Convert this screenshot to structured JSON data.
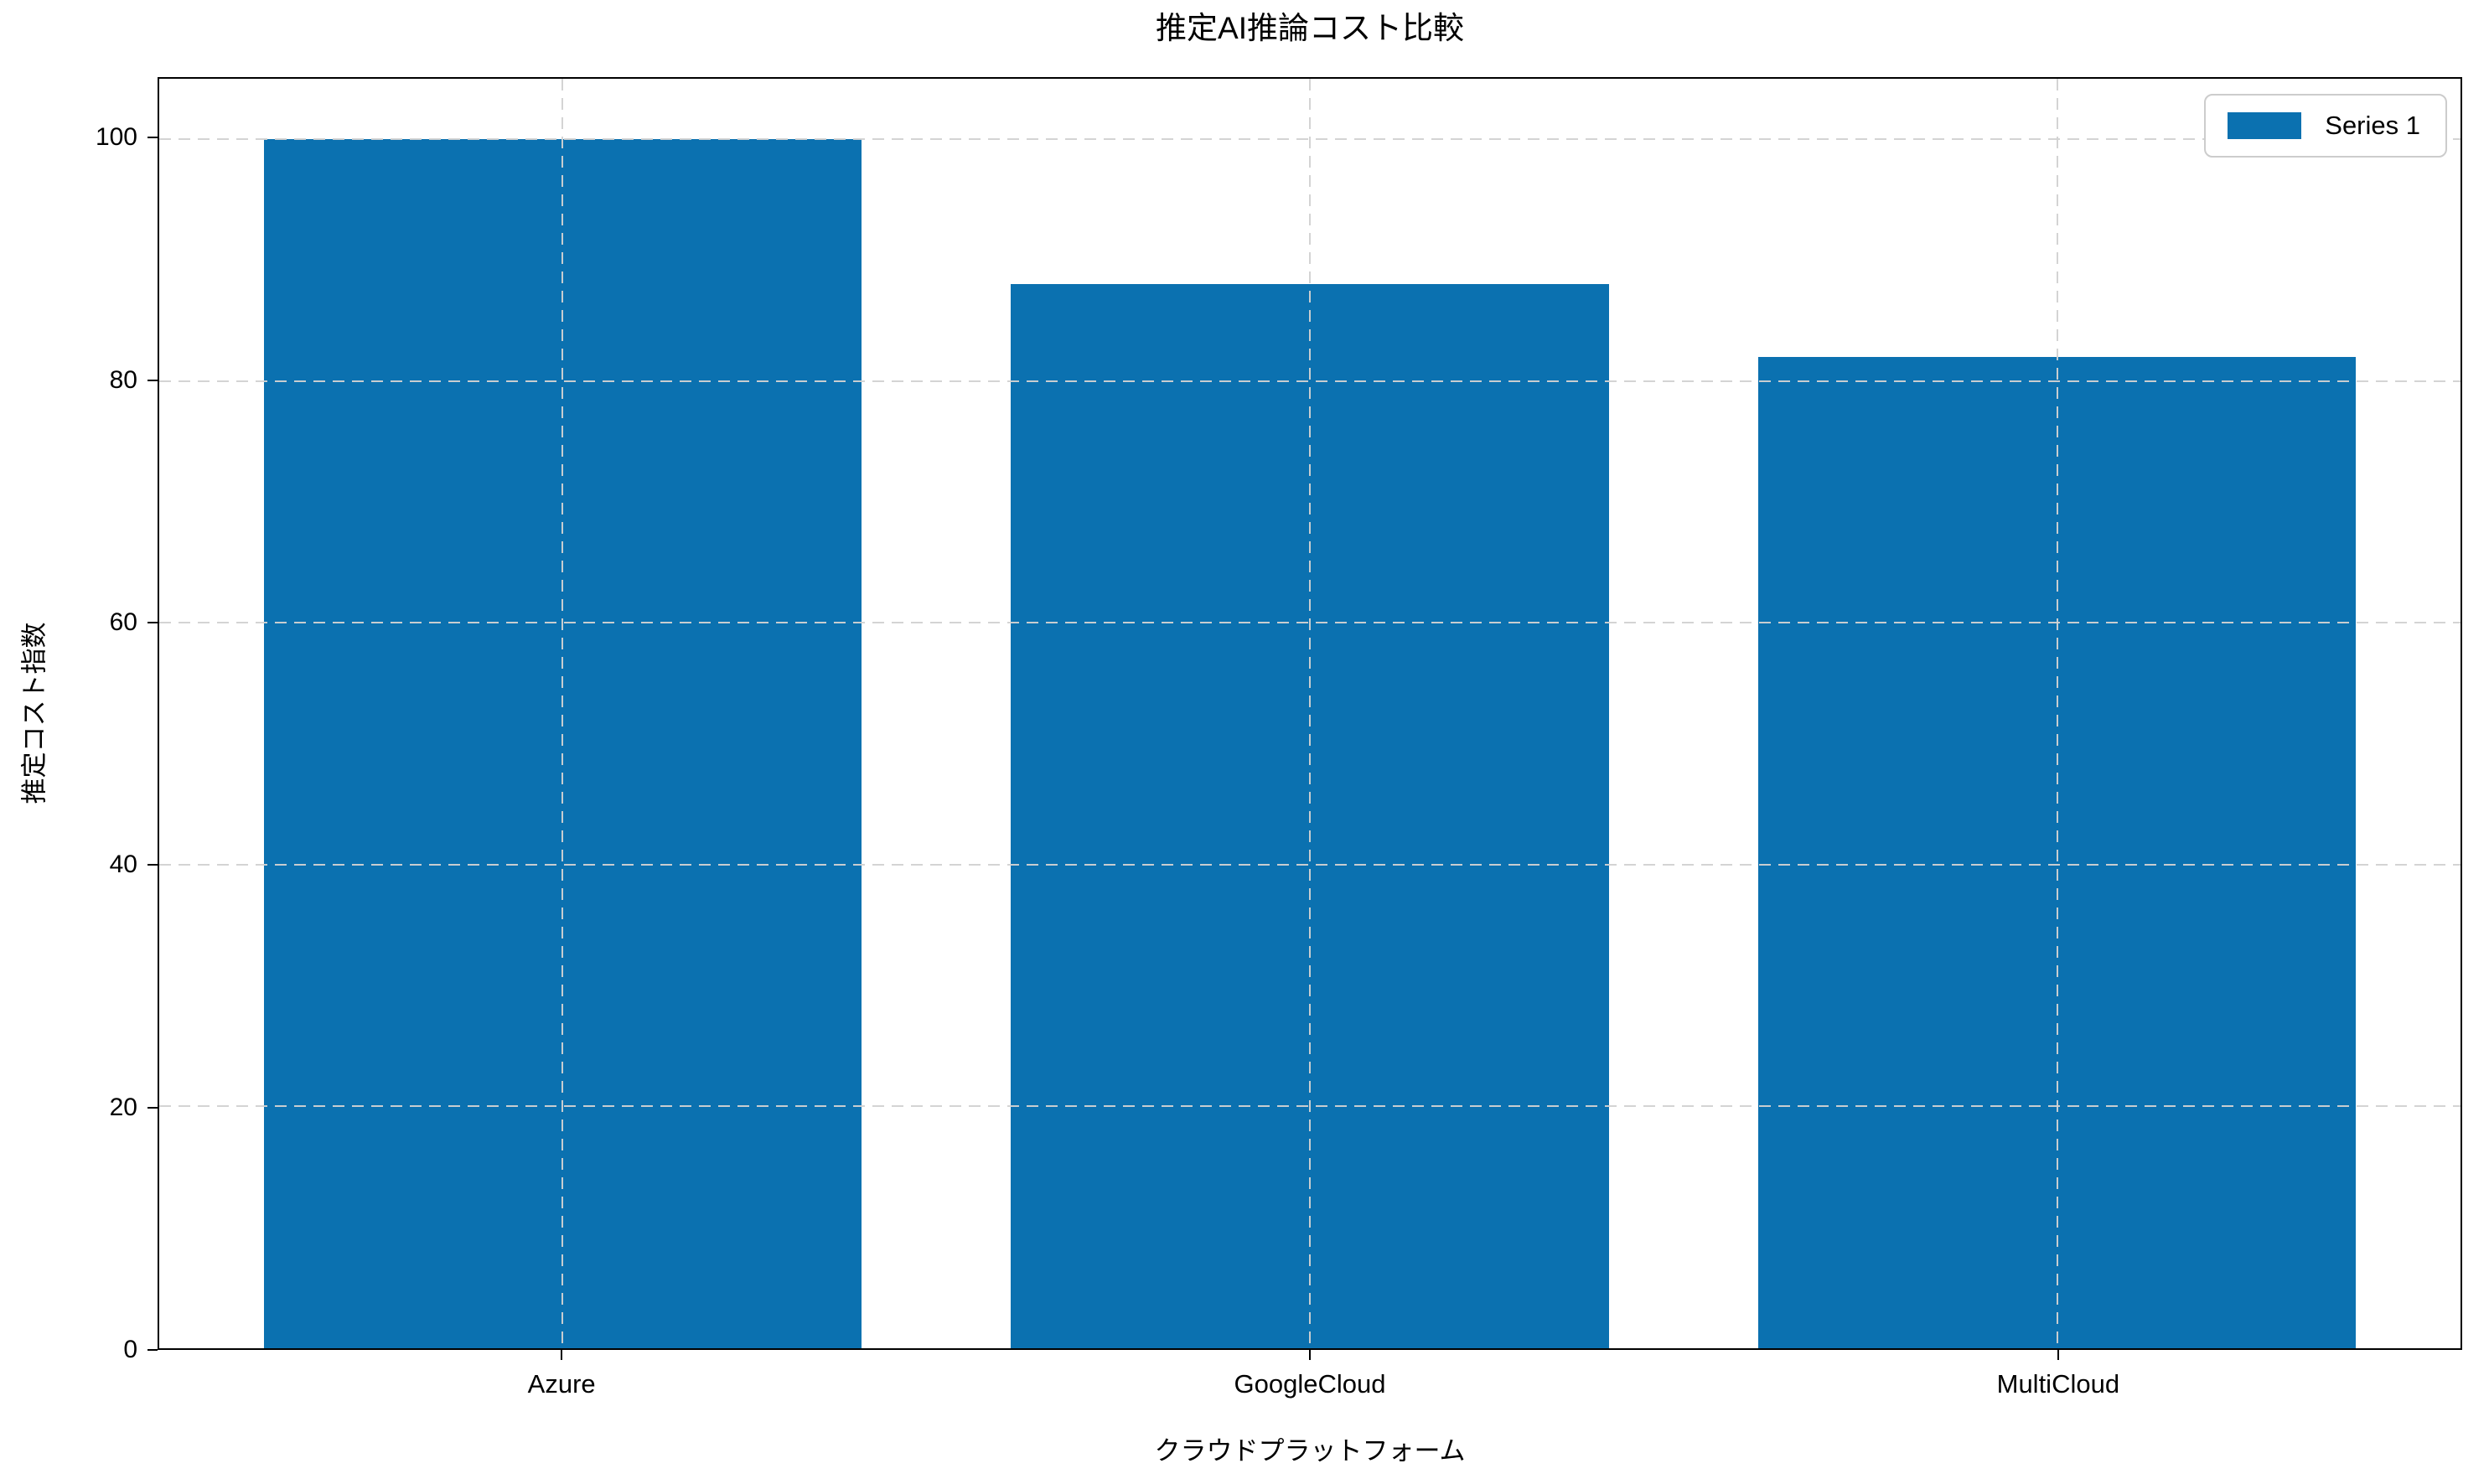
{
  "chart_data": {
    "type": "bar",
    "title": "推定AI推論コスト比較",
    "xlabel": "クラウドプラットフォーム",
    "ylabel": "推定コスト指数",
    "categories": [
      "Azure",
      "GoogleCloud",
      "MultiCloud"
    ],
    "series": [
      {
        "name": "Series 1",
        "color": "#0b71b0",
        "values": [
          100,
          88,
          82
        ]
      }
    ],
    "yticks": [
      0,
      20,
      40,
      60,
      80,
      100
    ],
    "ylim": [
      0,
      105
    ],
    "grid": true,
    "grid_style": "dashed",
    "grid_color": "#d2d2d2",
    "legend_position": "upper right",
    "background_color": "#ffffff",
    "spine_color": "#000000"
  }
}
